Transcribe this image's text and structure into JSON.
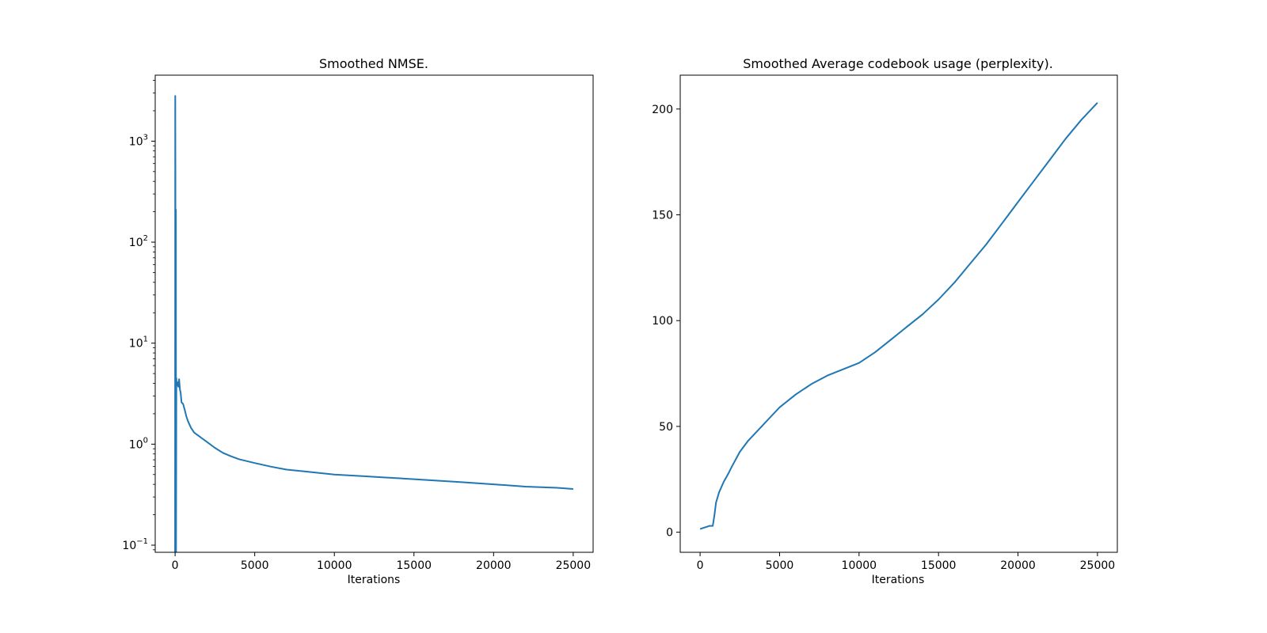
{
  "figure": {
    "background": "#ffffff",
    "line_color": "#1f77b4"
  },
  "chart_data": [
    {
      "type": "line",
      "title": "Smoothed NMSE.",
      "xlabel": "Iterations",
      "ylabel": "",
      "yscale": "log",
      "xlim": [
        -1250,
        26250
      ],
      "ylim": [
        0.085,
        4500
      ],
      "xticks": [
        0,
        5000,
        10000,
        15000,
        20000,
        25000
      ],
      "xtick_labels": [
        "0",
        "5000",
        "10000",
        "15000",
        "20000",
        "25000"
      ],
      "yticks": [
        0.1,
        1,
        10,
        100,
        1000
      ],
      "ytick_base_labels": [
        "10",
        "10",
        "10",
        "10",
        "10"
      ],
      "ytick_exponent_labels": [
        "−1",
        "0",
        "1",
        "2",
        "3"
      ],
      "grid": false,
      "series": [
        {
          "color": "#1f77b4",
          "x": [
            0,
            10,
            20,
            30,
            50,
            60,
            80,
            100,
            150,
            200,
            250,
            300,
            350,
            400,
            500,
            600,
            700,
            800,
            1000,
            1200,
            1500,
            2000,
            2500,
            3000,
            3500,
            4000,
            5000,
            6000,
            7000,
            8000,
            9000,
            10000,
            11000,
            12000,
            13000,
            14000,
            15000,
            16000,
            17000,
            18000,
            19000,
            20000,
            21000,
            22000,
            23000,
            24000,
            25000
          ],
          "y": [
            0.085,
            2800,
            500,
            0.085,
            210,
            0.085,
            4.5,
            3.8,
            4.1,
            3.7,
            4.4,
            3.5,
            3.2,
            2.6,
            2.5,
            2.2,
            1.9,
            1.7,
            1.45,
            1.3,
            1.2,
            1.05,
            0.92,
            0.82,
            0.76,
            0.71,
            0.65,
            0.6,
            0.56,
            0.54,
            0.52,
            0.5,
            0.49,
            0.48,
            0.47,
            0.46,
            0.45,
            0.44,
            0.43,
            0.42,
            0.41,
            0.4,
            0.39,
            0.38,
            0.375,
            0.37,
            0.36
          ]
        }
      ]
    },
    {
      "type": "line",
      "title": "Smoothed Average codebook usage (perplexity).",
      "xlabel": "Iterations",
      "ylabel": "",
      "yscale": "linear",
      "xlim": [
        -1250,
        26250
      ],
      "ylim": [
        -9.5,
        216
      ],
      "xticks": [
        0,
        5000,
        10000,
        15000,
        20000,
        25000
      ],
      "xtick_labels": [
        "0",
        "5000",
        "10000",
        "15000",
        "20000",
        "25000"
      ],
      "yticks": [
        0,
        50,
        100,
        150,
        200
      ],
      "ytick_labels": [
        "0",
        "50",
        "100",
        "150",
        "200"
      ],
      "grid": false,
      "series": [
        {
          "color": "#1f77b4",
          "x": [
            0,
            200,
            400,
            600,
            800,
            900,
            1000,
            1200,
            1500,
            1800,
            2000,
            2500,
            3000,
            3500,
            4000,
            4500,
            5000,
            6000,
            7000,
            8000,
            9000,
            10000,
            11000,
            12000,
            13000,
            14000,
            15000,
            16000,
            17000,
            18000,
            19000,
            20000,
            21000,
            22000,
            23000,
            24000,
            25000
          ],
          "y": [
            1.5,
            2,
            2.5,
            3,
            3,
            8,
            14,
            19,
            24,
            28,
            31,
            38,
            43,
            47,
            51,
            55,
            59,
            65,
            70,
            74,
            77,
            80,
            85,
            91,
            97,
            103,
            110,
            118,
            127,
            136,
            146,
            156,
            166,
            176,
            186,
            195,
            203
          ]
        }
      ]
    }
  ]
}
